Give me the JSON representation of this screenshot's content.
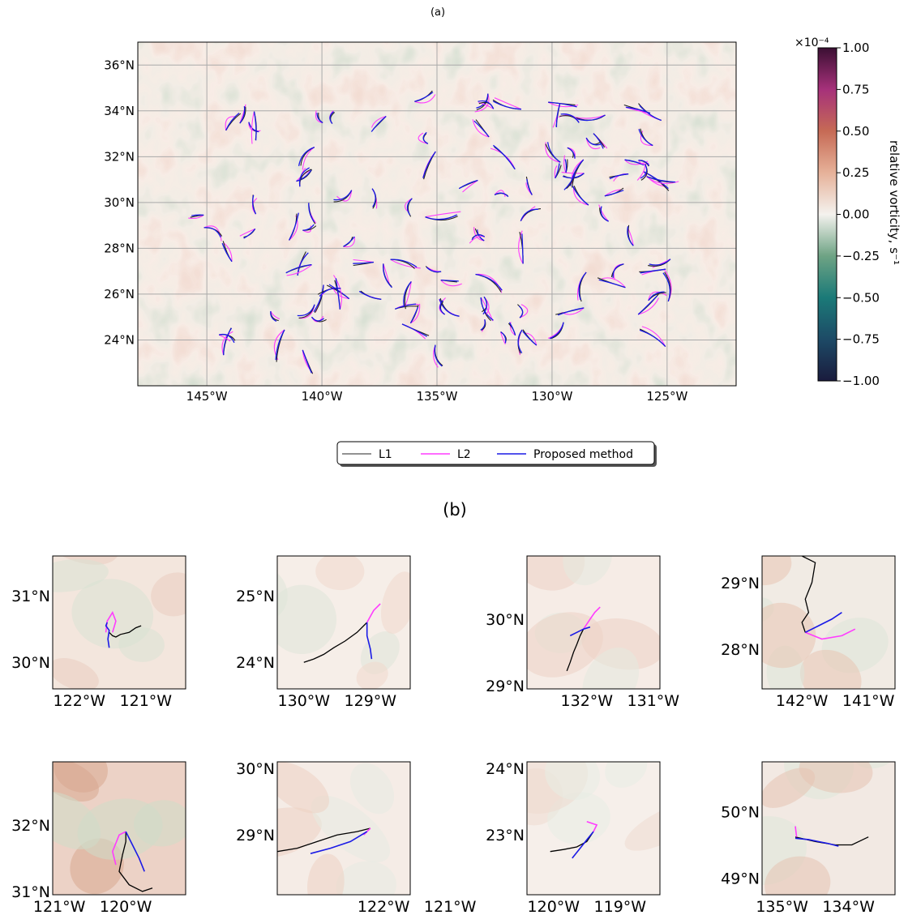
{
  "chart_data": [
    {
      "panel": "(a)",
      "type": "line",
      "title": "(a)",
      "xticks": [
        "145°W",
        "140°W",
        "135°W",
        "130°W",
        "125°W"
      ],
      "xtick_values": [
        -145,
        -140,
        -135,
        -130,
        -125
      ],
      "yticks": [
        "24°N",
        "26°N",
        "28°N",
        "30°N",
        "32°N",
        "34°N",
        "36°N"
      ],
      "ytick_values": [
        24,
        26,
        28,
        30,
        32,
        34,
        36
      ],
      "xlim": [
        -148,
        -122
      ],
      "ylim": [
        22,
        37
      ],
      "grid": true,
      "background": "relative vorticity field",
      "colorbar": {
        "label": "relative vorticity, s⁻¹",
        "multiplier": "×10⁻⁴",
        "ticks": [
          "−1.00",
          "−0.75",
          "−0.50",
          "−0.25",
          "0.00",
          "0.25",
          "0.50",
          "0.75",
          "1.00"
        ],
        "tick_values": [
          -1.0,
          -0.75,
          -0.5,
          -0.25,
          0.0,
          0.25,
          0.5,
          0.75,
          1.0
        ],
        "range": [
          -1,
          1
        ],
        "colors": [
          "#1a1b3d",
          "#1d4a66",
          "#1b7a78",
          "#6ea384",
          "#f4f2ee",
          "#e6b199",
          "#c66a55",
          "#a6317a",
          "#3b0f33"
        ]
      },
      "legend": {
        "placement": "below",
        "entries": [
          {
            "name": "L1",
            "color": "#6f6f6f"
          },
          {
            "name": "L2",
            "color": "#ff3cff"
          },
          {
            "name": "Proposed method",
            "color": "#1a1ae6"
          }
        ]
      },
      "trajectory_count": 110
    },
    {
      "panel": "(b)",
      "title": "(b)",
      "type": "line",
      "subplots": [
        {
          "xticks": [
            "122°W",
            "121°W"
          ],
          "xtick_values": [
            -122,
            -121
          ],
          "yticks": [
            "30°N",
            "31°N"
          ],
          "ytick_values": [
            30,
            31
          ],
          "xlim": [
            -122.4,
            -120.4
          ],
          "ylim": [
            29.6,
            31.6
          ],
          "L1": [
            [
              -121.07,
              30.55
            ],
            [
              -121.15,
              30.52
            ],
            [
              -121.25,
              30.45
            ],
            [
              -121.38,
              30.42
            ],
            [
              -121.45,
              30.38
            ],
            [
              -121.5,
              30.4
            ],
            [
              -121.55,
              30.45
            ]
          ],
          "L2": [
            [
              -121.6,
              30.45
            ],
            [
              -121.58,
              30.62
            ],
            [
              -121.5,
              30.75
            ],
            [
              -121.45,
              30.62
            ],
            [
              -121.5,
              30.45
            ]
          ],
          "proposed": [
            [
              -121.55,
              30.22
            ],
            [
              -121.57,
              30.35
            ],
            [
              -121.55,
              30.48
            ],
            [
              -121.6,
              30.55
            ],
            [
              -121.58,
              30.6
            ]
          ]
        },
        {
          "xticks": [
            "130°W",
            "129°W"
          ],
          "xtick_values": [
            -130,
            -129
          ],
          "yticks": [
            "24°N",
            "25°N"
          ],
          "ytick_values": [
            24,
            25
          ],
          "xlim": [
            -130.4,
            -128.4
          ],
          "ylim": [
            23.6,
            25.6
          ],
          "L1": [
            [
              -130.0,
              24.0
            ],
            [
              -129.85,
              24.05
            ],
            [
              -129.7,
              24.12
            ],
            [
              -129.55,
              24.22
            ],
            [
              -129.38,
              24.32
            ],
            [
              -129.2,
              24.45
            ],
            [
              -129.05,
              24.6
            ]
          ],
          "L2": [
            [
              -129.05,
              24.6
            ],
            [
              -128.95,
              24.78
            ],
            [
              -128.85,
              24.88
            ]
          ],
          "proposed": [
            [
              -129.05,
              24.6
            ],
            [
              -129.05,
              24.4
            ],
            [
              -129.0,
              24.2
            ],
            [
              -128.98,
              24.05
            ]
          ]
        },
        {
          "xticks": [
            "132°W",
            "131°W"
          ],
          "xtick_values": [
            -132,
            -131
          ],
          "yticks": [
            "29°N",
            "30°N"
          ],
          "ytick_values": [
            29,
            30
          ],
          "xlim": [
            -132.9,
            -130.9
          ],
          "ylim": [
            28.95,
            30.95
          ],
          "L1": [
            [
              -132.3,
              29.22
            ],
            [
              -132.25,
              29.35
            ],
            [
              -132.2,
              29.5
            ],
            [
              -132.15,
              29.62
            ],
            [
              -132.1,
              29.75
            ],
            [
              -132.05,
              29.85
            ]
          ],
          "L2": [
            [
              -132.05,
              29.85
            ],
            [
              -131.95,
              30.0
            ],
            [
              -131.88,
              30.1
            ],
            [
              -131.8,
              30.18
            ]
          ],
          "proposed": [
            [
              -132.25,
              29.75
            ],
            [
              -132.15,
              29.8
            ],
            [
              -132.05,
              29.85
            ],
            [
              -131.95,
              29.88
            ]
          ]
        },
        {
          "xticks": [
            "142°W",
            "141°W"
          ],
          "xtick_values": [
            -142,
            -141
          ],
          "yticks": [
            "28°N",
            "29°N"
          ],
          "ytick_values": [
            28,
            29
          ],
          "xlim": [
            -142.6,
            -140.6
          ],
          "ylim": [
            27.4,
            29.4
          ],
          "L1": [
            [
              -142.0,
              29.4
            ],
            [
              -141.8,
              29.3
            ],
            [
              -141.85,
              29.0
            ],
            [
              -141.95,
              28.75
            ],
            [
              -141.9,
              28.55
            ],
            [
              -142.0,
              28.4
            ],
            [
              -141.95,
              28.25
            ]
          ],
          "L2": [
            [
              -141.95,
              28.25
            ],
            [
              -141.7,
              28.15
            ],
            [
              -141.4,
              28.2
            ],
            [
              -141.2,
              28.3
            ]
          ],
          "proposed": [
            [
              -141.95,
              28.25
            ],
            [
              -141.75,
              28.35
            ],
            [
              -141.55,
              28.45
            ],
            [
              -141.4,
              28.55
            ]
          ]
        },
        {
          "xticks": [
            "121°W",
            "120°W"
          ],
          "xtick_values": [
            -121,
            -120
          ],
          "yticks": [
            "31°N",
            "32°N"
          ],
          "ytick_values": [
            31,
            32
          ],
          "xlim": [
            -121.1,
            -119.1
          ],
          "ylim": [
            30.95,
            32.95
          ],
          "L1": [
            [
              -119.6,
              31.05
            ],
            [
              -119.75,
              31.0
            ],
            [
              -119.95,
              31.1
            ],
            [
              -120.1,
              31.3
            ],
            [
              -120.05,
              31.55
            ],
            [
              -120.0,
              31.75
            ],
            [
              -120.0,
              31.9
            ]
          ],
          "L2": [
            [
              -120.0,
              31.9
            ],
            [
              -120.1,
              31.85
            ],
            [
              -120.2,
              31.6
            ],
            [
              -120.15,
              31.4
            ]
          ],
          "proposed": [
            [
              -120.0,
              31.9
            ],
            [
              -119.9,
              31.7
            ],
            [
              -119.8,
              31.5
            ],
            [
              -119.72,
              31.3
            ]
          ]
        },
        {
          "xticks": [
            "122°W",
            "121°W"
          ],
          "xtick_values": [
            -122,
            -121
          ],
          "yticks": [
            "29°N",
            "30°N"
          ],
          "ytick_values": [
            29,
            30
          ],
          "xlim": [
            -123.6,
            -121.6
          ],
          "ylim": [
            28.1,
            30.1
          ],
          "L1": [
            [
              -123.6,
              28.75
            ],
            [
              -123.3,
              28.8
            ],
            [
              -123.0,
              28.9
            ],
            [
              -122.7,
              29.0
            ],
            [
              -122.4,
              29.05
            ],
            [
              -122.2,
              29.1
            ]
          ],
          "L2": [
            [
              -122.2,
              29.1
            ],
            [
              -122.3,
              29.0
            ]
          ],
          "proposed": [
            [
              -123.1,
              28.72
            ],
            [
              -122.8,
              28.8
            ],
            [
              -122.5,
              28.9
            ],
            [
              -122.25,
              29.05
            ]
          ]
        },
        {
          "xticks": [
            "120°W",
            "119°W"
          ],
          "xtick_values": [
            -120,
            -119
          ],
          "yticks": [
            "23°N",
            "24°N"
          ],
          "ytick_values": [
            23,
            24
          ],
          "xlim": [
            -120.4,
            -118.4
          ],
          "ylim": [
            22.1,
            24.1
          ],
          "L1": [
            [
              -120.05,
              22.75
            ],
            [
              -119.85,
              22.78
            ],
            [
              -119.65,
              22.82
            ],
            [
              -119.5,
              22.9
            ],
            [
              -119.4,
              23.05
            ]
          ],
          "L2": [
            [
              -119.4,
              23.05
            ],
            [
              -119.35,
              23.15
            ],
            [
              -119.5,
              23.2
            ]
          ],
          "proposed": [
            [
              -119.72,
              22.65
            ],
            [
              -119.6,
              22.8
            ],
            [
              -119.48,
              22.95
            ],
            [
              -119.4,
              23.05
            ]
          ]
        },
        {
          "xticks": [
            "135°W",
            "134°W"
          ],
          "xtick_values": [
            -135,
            -134
          ],
          "yticks": [
            "49°N",
            "50°N"
          ],
          "ytick_values": [
            49,
            50
          ],
          "xlim": [
            -135.3,
            -133.3
          ],
          "ylim": [
            48.75,
            50.75
          ],
          "L1": [
            [
              -134.8,
              49.62
            ],
            [
              -134.5,
              49.55
            ],
            [
              -134.2,
              49.5
            ],
            [
              -133.95,
              49.5
            ],
            [
              -133.7,
              49.62
            ]
          ],
          "L2": [
            [
              -134.78,
              49.62
            ],
            [
              -134.8,
              49.78
            ]
          ],
          "proposed": [
            [
              -134.8,
              49.6
            ],
            [
              -134.6,
              49.58
            ],
            [
              -134.3,
              49.52
            ],
            [
              -134.15,
              49.48
            ]
          ]
        }
      ]
    }
  ]
}
